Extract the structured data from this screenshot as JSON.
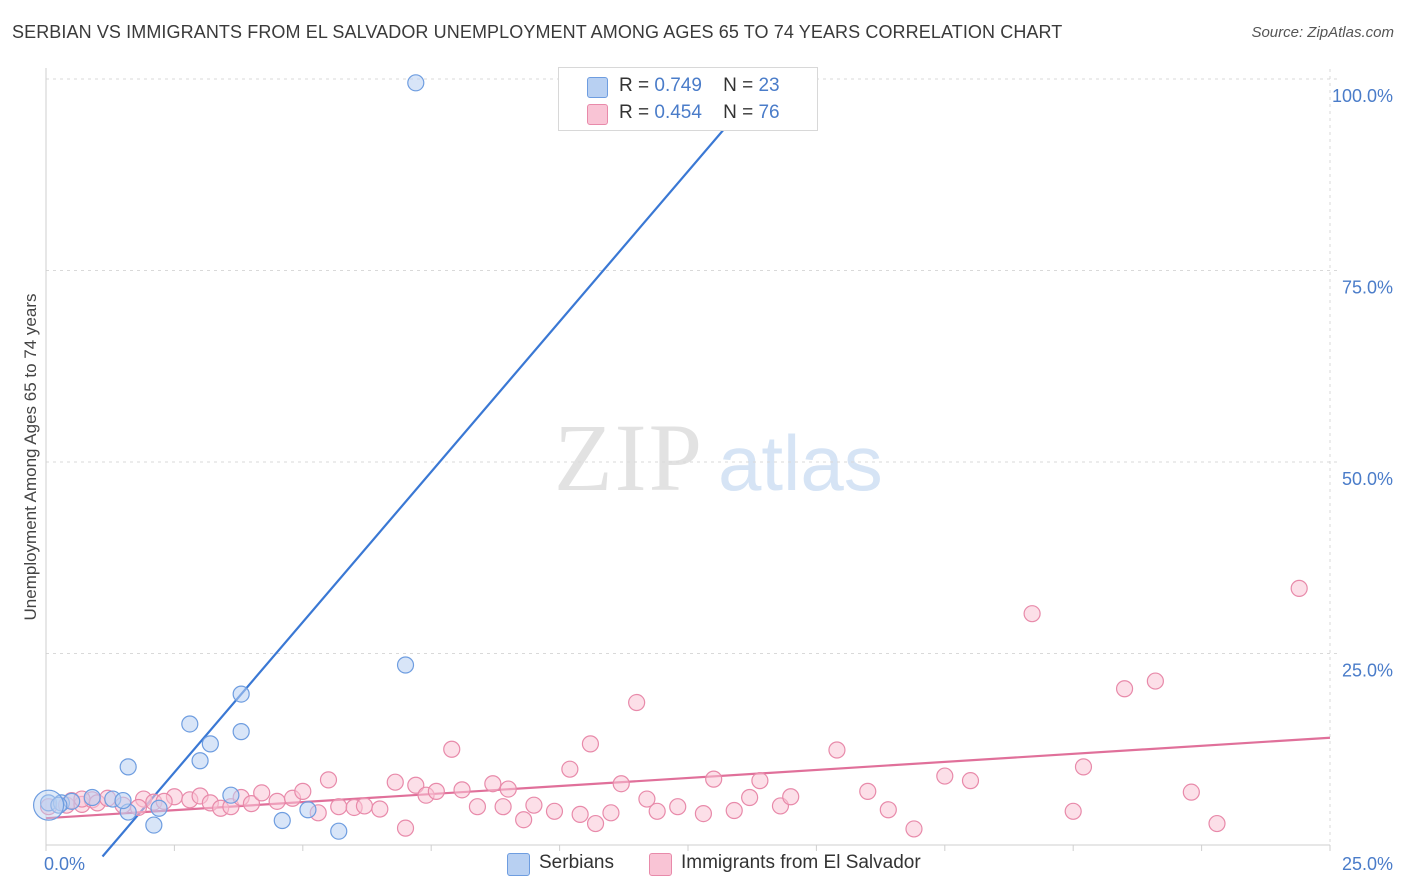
{
  "title": "SERBIAN VS IMMIGRANTS FROM EL SALVADOR UNEMPLOYMENT AMONG AGES 65 TO 74 YEARS CORRELATION CHART",
  "source": "Source: ZipAtlas.com",
  "watermark": {
    "zip": "ZIP",
    "atlas": "atlas"
  },
  "legend": {
    "serbians": {
      "r_label": "R =",
      "r_value": "0.749",
      "n_label": "N =",
      "n_value": "23"
    },
    "elsalvador": {
      "r_label": "R =",
      "r_value": "0.454",
      "n_label": "N =",
      "n_value": "76"
    }
  },
  "bottom_legend": {
    "serbians": "Serbians",
    "elsalvador": "Immigrants from El Salvador"
  },
  "colors": {
    "serbians_fill": "#b8d0f2",
    "serbians_stroke": "#6e9de0",
    "serbians_line": "#3a78d4",
    "elsalvador_fill": "#f9c4d5",
    "elsalvador_stroke": "#e88aaa",
    "elsalvador_line": "#e0709a",
    "tick": "#4a7cc9",
    "grid": "#d9d9d9"
  },
  "chart_data": {
    "type": "scatter",
    "title": "SERBIAN VS IMMIGRANTS FROM EL SALVADOR UNEMPLOYMENT AMONG AGES 65 TO 74 YEARS CORRELATION CHART",
    "xlabel": "",
    "ylabel": "Unemployment Among Ages 65 to 74 years",
    "xlim": [
      0,
      25
    ],
    "ylim": [
      0,
      100
    ],
    "x_ticks": [
      "0.0%",
      "25.0%"
    ],
    "y_ticks": [
      "25.0%",
      "50.0%",
      "75.0%",
      "100.0%"
    ],
    "grid": true,
    "legend_position": "top-center",
    "series": [
      {
        "name": "Serbians",
        "R": 0.749,
        "N": 23,
        "trend": {
          "x": [
            1.1,
            14.1
          ],
          "y": [
            -1.5,
            100.5
          ]
        },
        "points": [
          [
            0.05,
            5.5
          ],
          [
            0.3,
            5.5
          ],
          [
            0.5,
            5.7
          ],
          [
            0.9,
            6.2
          ],
          [
            1.3,
            6.0
          ],
          [
            1.6,
            4.3
          ],
          [
            1.5,
            5.8
          ],
          [
            2.2,
            4.8
          ],
          [
            2.1,
            2.6
          ],
          [
            1.6,
            10.2
          ],
          [
            2.8,
            15.8
          ],
          [
            3.2,
            13.2
          ],
          [
            3.0,
            11.0
          ],
          [
            3.8,
            14.8
          ],
          [
            3.6,
            6.5
          ],
          [
            3.8,
            19.7
          ],
          [
            4.6,
            3.2
          ],
          [
            5.1,
            4.6
          ],
          [
            5.7,
            1.8
          ],
          [
            7.0,
            23.5
          ],
          [
            7.2,
            99.5
          ],
          [
            11.6,
            99.6
          ],
          [
            0.25,
            5.2
          ]
        ]
      },
      {
        "name": "Immigrants from El Salvador",
        "R": 0.454,
        "N": 76,
        "trend": {
          "x": [
            0,
            25
          ],
          "y": [
            3.5,
            14.0
          ]
        },
        "points": [
          [
            0.05,
            5.0
          ],
          [
            0.4,
            5.2
          ],
          [
            0.5,
            5.8
          ],
          [
            0.7,
            5.3
          ],
          [
            0.9,
            5.9
          ],
          [
            1.0,
            5.5
          ],
          [
            1.2,
            6.1
          ],
          [
            1.5,
            5.2
          ],
          [
            1.9,
            6.0
          ],
          [
            2.1,
            5.6
          ],
          [
            2.5,
            6.3
          ],
          [
            2.8,
            5.9
          ],
          [
            3.0,
            6.4
          ],
          [
            3.2,
            5.5
          ],
          [
            3.4,
            4.8
          ],
          [
            3.6,
            5.0
          ],
          [
            3.8,
            6.2
          ],
          [
            4.0,
            5.4
          ],
          [
            4.2,
            6.8
          ],
          [
            4.5,
            5.7
          ],
          [
            4.8,
            6.1
          ],
          [
            5.0,
            7.0
          ],
          [
            5.3,
            4.2
          ],
          [
            5.5,
            8.5
          ],
          [
            5.7,
            5.0
          ],
          [
            6.0,
            4.9
          ],
          [
            6.2,
            5.1
          ],
          [
            6.5,
            4.7
          ],
          [
            6.8,
            8.2
          ],
          [
            7.0,
            2.2
          ],
          [
            7.2,
            7.8
          ],
          [
            7.4,
            6.5
          ],
          [
            7.6,
            7.0
          ],
          [
            7.9,
            12.5
          ],
          [
            8.1,
            7.2
          ],
          [
            8.4,
            5.0
          ],
          [
            8.7,
            8.0
          ],
          [
            8.9,
            5.0
          ],
          [
            9.0,
            7.3
          ],
          [
            9.3,
            3.3
          ],
          [
            9.5,
            5.2
          ],
          [
            9.9,
            4.4
          ],
          [
            10.2,
            9.9
          ],
          [
            10.4,
            4.0
          ],
          [
            10.6,
            13.2
          ],
          [
            10.7,
            2.8
          ],
          [
            11.0,
            4.2
          ],
          [
            11.2,
            8.0
          ],
          [
            11.5,
            18.6
          ],
          [
            11.7,
            6.0
          ],
          [
            11.9,
            4.4
          ],
          [
            12.3,
            5.0
          ],
          [
            12.8,
            4.1
          ],
          [
            13.0,
            8.6
          ],
          [
            13.4,
            4.5
          ],
          [
            13.7,
            6.2
          ],
          [
            13.9,
            8.4
          ],
          [
            14.3,
            5.1
          ],
          [
            14.5,
            6.3
          ],
          [
            15.4,
            12.4
          ],
          [
            16.0,
            7.0
          ],
          [
            16.4,
            4.6
          ],
          [
            16.9,
            2.1
          ],
          [
            17.5,
            9.0
          ],
          [
            18.0,
            8.4
          ],
          [
            19.2,
            30.2
          ],
          [
            20.0,
            4.4
          ],
          [
            20.2,
            10.2
          ],
          [
            21.0,
            20.4
          ],
          [
            21.6,
            21.4
          ],
          [
            22.3,
            6.9
          ],
          [
            22.8,
            2.8
          ],
          [
            24.4,
            33.5
          ],
          [
            0.7,
            6.0
          ],
          [
            1.8,
            4.9
          ],
          [
            2.3,
            5.7
          ]
        ]
      }
    ]
  }
}
